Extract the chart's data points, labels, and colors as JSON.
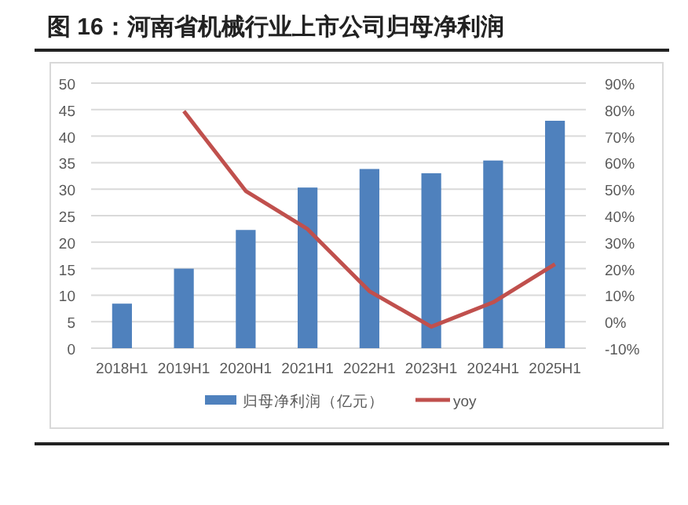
{
  "chart_data": {
    "type": "bar",
    "title": "图 16：河南省机械行业上市公司归母净利润",
    "categories": [
      "2018H1",
      "2019H1",
      "2020H1",
      "2021H1",
      "2022H1",
      "2023H1",
      "2024H1",
      "2025H1"
    ],
    "series": [
      {
        "name": "归母净利润（亿元）",
        "color": "#4f81bd",
        "values": [
          8.4,
          15.0,
          22.3,
          30.3,
          33.8,
          33.0,
          35.4,
          42.9
        ]
      },
      {
        "name": "yoy",
        "color": "#c0504d",
        "type": "line",
        "axis": "y2",
        "values": [
          null,
          79.4,
          49.3,
          34.9,
          11.5,
          -1.9,
          7.3,
          21.7
        ]
      }
    ],
    "ylim": [
      0,
      50
    ],
    "yticks": [
      0,
      5,
      10,
      15,
      20,
      25,
      30,
      35,
      40,
      45,
      50
    ],
    "y2lim": [
      -10,
      90
    ],
    "y2ticks": [
      {
        "value": -10,
        "label": "-10%"
      },
      {
        "value": 0,
        "label": "0%"
      },
      {
        "value": 10,
        "label": "10%"
      },
      {
        "value": 20,
        "label": "20%"
      },
      {
        "value": 30,
        "label": "30%"
      },
      {
        "value": 40,
        "label": "40%"
      },
      {
        "value": 50,
        "label": "50%"
      },
      {
        "value": 60,
        "label": "60%"
      },
      {
        "value": 70,
        "label": "70%"
      },
      {
        "value": 80,
        "label": "80%"
      },
      {
        "value": 90,
        "label": "90%"
      }
    ],
    "grid": "y",
    "legend": "bottom",
    "marker": "none",
    "line_style": "solid"
  }
}
